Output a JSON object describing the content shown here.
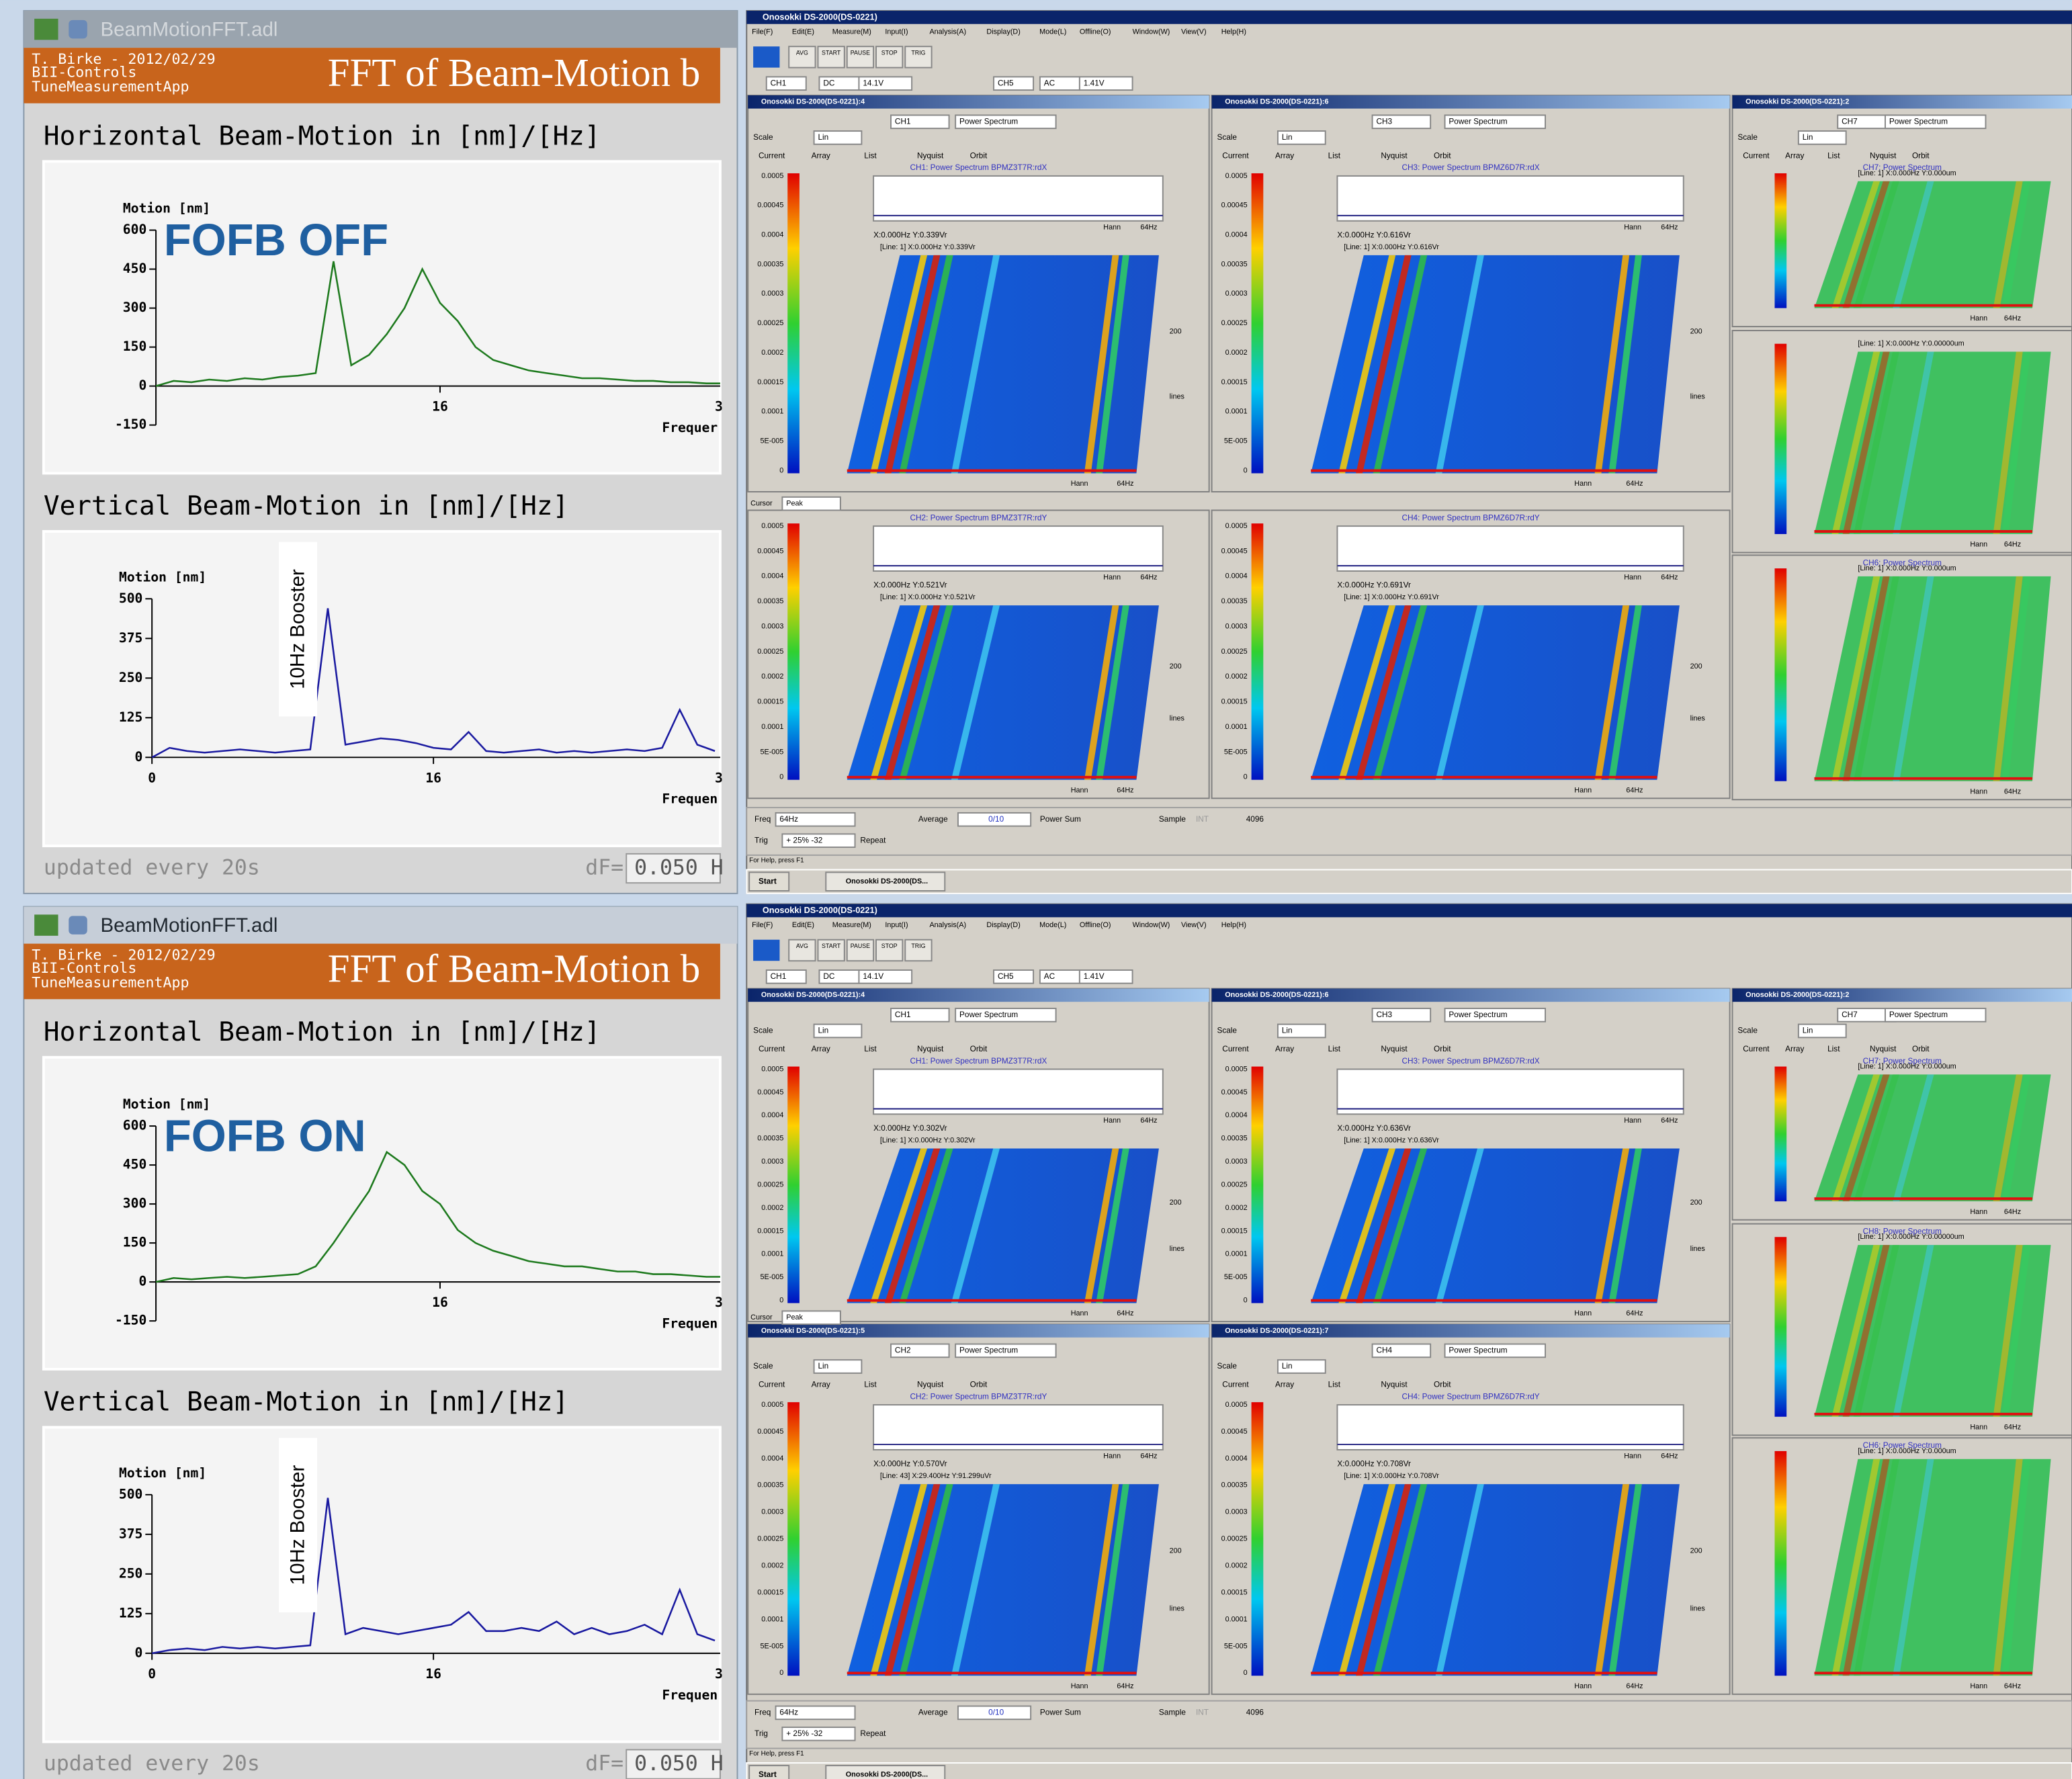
{
  "panels": [
    {
      "window_title": "BeamMotionFFT.adl",
      "author": "T. Birke - 2012/02/29",
      "group": "BII-Controls",
      "app": "TuneMeasurementApp",
      "title": "FFT of Beam-Motion b",
      "horizontal": {
        "heading": "Horizontal Beam-Motion in [nm]/[Hz]",
        "axis_label": "Motion [nm]",
        "annotation": "FOFB OFF",
        "x_label": "Frequer",
        "x_edge_label": "3",
        "ylim": [
          -150,
          600
        ],
        "yticks": [
          600,
          450,
          300,
          150,
          0,
          -150
        ],
        "xlim": [
          0,
          32
        ],
        "xticks": [
          16
        ],
        "freq": [
          0,
          1,
          2,
          3,
          4,
          5,
          6,
          7,
          8,
          9,
          10,
          11,
          12,
          13,
          14,
          15,
          16,
          17,
          18,
          19,
          20,
          21,
          22,
          23,
          24,
          25,
          26,
          27,
          28,
          29,
          30,
          31,
          32
        ],
        "values": [
          0,
          20,
          15,
          25,
          20,
          30,
          25,
          35,
          40,
          50,
          480,
          80,
          120,
          200,
          300,
          450,
          320,
          250,
          150,
          100,
          80,
          60,
          50,
          40,
          30,
          30,
          25,
          20,
          20,
          15,
          15,
          10,
          10
        ]
      },
      "vertical": {
        "heading": "Vertical Beam-Motion in [nm]/[Hz]",
        "axis_label": "Motion [nm]",
        "annotation": "10Hz Booster",
        "x_label": "Frequen",
        "x_edge_label": "3",
        "ylim": [
          0,
          500
        ],
        "yticks": [
          500,
          375,
          250,
          125,
          0
        ],
        "xlim": [
          0,
          32
        ],
        "xticks": [
          0,
          16
        ],
        "freq": [
          0,
          1,
          2,
          3,
          4,
          5,
          6,
          7,
          8,
          9,
          10,
          11,
          12,
          13,
          14,
          15,
          16,
          17,
          18,
          19,
          20,
          21,
          22,
          23,
          24,
          25,
          26,
          27,
          28,
          29,
          30,
          31,
          32
        ],
        "values": [
          0,
          30,
          20,
          15,
          20,
          25,
          20,
          15,
          20,
          25,
          470,
          40,
          50,
          60,
          55,
          45,
          30,
          25,
          80,
          20,
          15,
          20,
          25,
          15,
          20,
          15,
          20,
          25,
          20,
          30,
          150,
          40,
          20
        ]
      },
      "footer": "updated every 20s",
      "df_label": "dF=",
      "df_value": "0.050 H"
    },
    {
      "window_title": "BeamMotionFFT.adl",
      "author": "T. Birke - 2012/02/29",
      "group": "BII-Controls",
      "app": "TuneMeasurementApp",
      "title": "FFT of Beam-Motion b",
      "horizontal": {
        "heading": "Horizontal Beam-Motion in [nm]/[Hz]",
        "axis_label": "Motion [nm]",
        "annotation": "FOFB ON",
        "x_label": "Frequen",
        "x_edge_label": "3",
        "ylim": [
          -150,
          600
        ],
        "yticks": [
          600,
          450,
          300,
          150,
          0,
          -150
        ],
        "xlim": [
          0,
          32
        ],
        "xticks": [
          16
        ],
        "freq": [
          0,
          1,
          2,
          3,
          4,
          5,
          6,
          7,
          8,
          9,
          10,
          11,
          12,
          13,
          14,
          15,
          16,
          17,
          18,
          19,
          20,
          21,
          22,
          23,
          24,
          25,
          26,
          27,
          28,
          29,
          30,
          31,
          32
        ],
        "values": [
          0,
          15,
          10,
          15,
          20,
          15,
          20,
          25,
          30,
          60,
          150,
          250,
          350,
          500,
          450,
          350,
          300,
          200,
          150,
          120,
          100,
          80,
          70,
          60,
          60,
          50,
          40,
          40,
          30,
          30,
          25,
          20,
          20
        ]
      },
      "vertical": {
        "heading": "Vertical Beam-Motion in [nm]/[Hz]",
        "axis_label": "Motion [nm]",
        "annotation": "10Hz Booster",
        "x_label": "Frequen",
        "x_edge_label": "3",
        "ylim": [
          0,
          500
        ],
        "yticks": [
          500,
          375,
          250,
          125,
          0
        ],
        "xlim": [
          0,
          32
        ],
        "xticks": [
          0,
          16
        ],
        "freq": [
          0,
          1,
          2,
          3,
          4,
          5,
          6,
          7,
          8,
          9,
          10,
          11,
          12,
          13,
          14,
          15,
          16,
          17,
          18,
          19,
          20,
          21,
          22,
          23,
          24,
          25,
          26,
          27,
          28,
          29,
          30,
          31,
          32
        ],
        "values": [
          0,
          10,
          15,
          10,
          20,
          15,
          20,
          15,
          20,
          25,
          490,
          60,
          80,
          70,
          60,
          70,
          80,
          90,
          130,
          70,
          70,
          80,
          70,
          100,
          60,
          80,
          60,
          70,
          90,
          60,
          200,
          60,
          40
        ]
      },
      "footer": "updated every 20s",
      "df_label": "dF=",
      "df_value": "0.050 H"
    }
  ],
  "analyzers": [
    {
      "title": "Onosokki DS-2000(DS-0221)",
      "menu": [
        "File(F)",
        "Edit(E)",
        "Measure(M)",
        "Input(I)",
        "Analysis(A)",
        "Display(D)",
        "Mode(L)",
        "Offline(O)",
        "Window(W)",
        "View(V)",
        "Help(H)"
      ],
      "buttons": [
        "AVG",
        "START",
        "PAUSE",
        "STOP",
        "TRIG"
      ],
      "inputs": [
        "CH1",
        "DC",
        "14.1V",
        "CH5",
        "AC",
        "1.41V"
      ],
      "function": "Power Spectrum",
      "scale": "Scale",
      "scale_mode": "Lin",
      "tabs": [
        "Current",
        "Array",
        "List",
        "Nyquist",
        "Orbit"
      ],
      "scale_labels": [
        "0.0005",
        "0.00045",
        "0.0004",
        "0.00035",
        "0.0003",
        "0.00025",
        "0.0002",
        "0.00015",
        "0.0001",
        "5E-005",
        "0"
      ],
      "window_fn": "Hann",
      "span": "64Hz",
      "lines_count": "200",
      "lines_label": "lines",
      "cursor": "Cursor",
      "cursor_mode": "Peak",
      "freq_label": "Freq",
      "freq": "64Hz",
      "average_label": "Average",
      "average": "0/10",
      "average_mode": "Power Sum",
      "sample_label": "Sample",
      "sample": "INT",
      "lines": "4096",
      "trig_label": "Trig",
      "trig": "+ 25% -32",
      "repeat": "Repeat",
      "status": "For Help, press F1",
      "start": "Start",
      "task": "Onosokki DS-2000(DS...",
      "windows": [
        {
          "title": "Onosokki DS-2000(DS-0221):4",
          "channel": "CH1",
          "plot_title": "CH1: Power Spectrum BPMZ3T7R:rdX",
          "readout": "X:0.000Hz Y:0.339Vr",
          "line_readout": "[Line: 1]  X:0.000Hz Y:0.339Vr"
        },
        {
          "title": "Onosokki DS-2000(DS-0221):6",
          "channel": "CH3",
          "plot_title": "CH3: Power Spectrum BPMZ6D7R:rdX",
          "readout": "X:0.000Hz Y:0.616Vr",
          "line_readout": "[Line: 1]  X:0.000Hz Y:0.616Vr"
        },
        {
          "title": "Onosokki DS-2000(DS-0221):2",
          "channel": "CH7",
          "plot_title": "CH7: Power Spectrum",
          "line_readout": "[Line: 1]  X:0.000Hz Y:0.000um"
        },
        {
          "plot_title": "CH2: Power Spectrum BPMZ3T7R:rdY",
          "readout": "X:0.000Hz Y:0.521Vr",
          "line_readout": "[Line: 1]  X:0.000Hz Y:0.521Vr"
        },
        {
          "plot_title": "CH4: Power Spectrum BPMZ6D7R:rdY",
          "readout": "X:0.000Hz Y:0.691Vr",
          "line_readout": "[Line: 1]  X:0.000Hz Y:0.691Vr"
        },
        {
          "line_readout": "[Line: 1]  X:0.000Hz Y:0.00000um"
        },
        {
          "plot_title": "CH6: Power Spectrum",
          "line_readout": "[Line: 1]  X:0.000Hz Y:0.000um"
        }
      ]
    },
    {
      "title": "Onosokki DS-2000(DS-0221)",
      "menu": [
        "File(F)",
        "Edit(E)",
        "Measure(M)",
        "Input(I)",
        "Analysis(A)",
        "Display(D)",
        "Mode(L)",
        "Offline(O)",
        "Window(W)",
        "View(V)",
        "Help(H)"
      ],
      "buttons": [
        "AVG",
        "START",
        "PAUSE",
        "STOP",
        "TRIG"
      ],
      "inputs": [
        "CH1",
        "DC",
        "14.1V",
        "CH5",
        "AC",
        "1.41V"
      ],
      "function": "Power Spectrum",
      "scale": "Scale",
      "scale_mode": "Lin",
      "tabs": [
        "Current",
        "Array",
        "List",
        "Nyquist",
        "Orbit"
      ],
      "scale_labels": [
        "0.0005",
        "0.00045",
        "0.0004",
        "0.00035",
        "0.0003",
        "0.00025",
        "0.0002",
        "0.00015",
        "0.0001",
        "5E-005",
        "0"
      ],
      "window_fn": "Hann",
      "span": "64Hz",
      "lines_count": "200",
      "lines_label": "lines",
      "cursor": "Cursor",
      "cursor_mode": "Peak",
      "freq_label": "Freq",
      "freq": "64Hz",
      "average_label": "Average",
      "average": "0/10",
      "average_mode": "Power Sum",
      "sample_label": "Sample",
      "sample": "INT",
      "lines": "4096",
      "trig_label": "Trig",
      "trig": "+ 25% -32",
      "repeat": "Repeat",
      "status": "For Help, press F1",
      "start": "Start",
      "task": "Onosokki DS-2000(DS...",
      "windows": [
        {
          "title": "Onosokki DS-2000(DS-0221):4",
          "channel": "CH1",
          "plot_title": "CH1: Power Spectrum BPMZ3T7R:rdX",
          "readout": "X:0.000Hz Y:0.302Vr",
          "line_readout": "[Line: 1]  X:0.000Hz Y:0.302Vr"
        },
        {
          "title": "Onosokki DS-2000(DS-0221):6",
          "channel": "CH3",
          "plot_title": "CH3: Power Spectrum BPMZ6D7R:rdX",
          "readout": "X:0.000Hz Y:0.636Vr",
          "line_readout": "[Line: 1]  X:0.000Hz Y:0.636Vr"
        },
        {
          "title": "Onosokki DS-2000(DS-0221):2",
          "channel": "CH7",
          "plot_title": "CH7: Power Spectrum",
          "line_readout": "[Line: 1]  X:0.000Hz Y:0.000um"
        },
        {
          "title": "Onosokki DS-2000(DS-0221):5",
          "channel": "CH2",
          "plot_title": "CH2: Power Spectrum BPMZ3T7R:rdY",
          "readout": "X:0.000Hz Y:0.570Vr",
          "line_readout": "[Line: 43]  X:29.400Hz Y:91.299uVr"
        },
        {
          "title": "Onosokki DS-2000(DS-0221):7",
          "channel": "CH4",
          "plot_title": "CH4: Power Spectrum BPMZ6D7R:rdY",
          "readout": "X:0.000Hz Y:0.708Vr",
          "line_readout": "[Line: 1]  X:0.000Hz Y:0.708Vr"
        },
        {
          "plot_title": "CH8: Power Spectrum",
          "line_readout": "[Line: 1]  X:0.000Hz Y:0.00000um"
        },
        {
          "plot_title": "CH6: Power Spectrum",
          "line_readout": "[Line: 1]  X:0.000Hz Y:0.000um"
        }
      ]
    }
  ]
}
